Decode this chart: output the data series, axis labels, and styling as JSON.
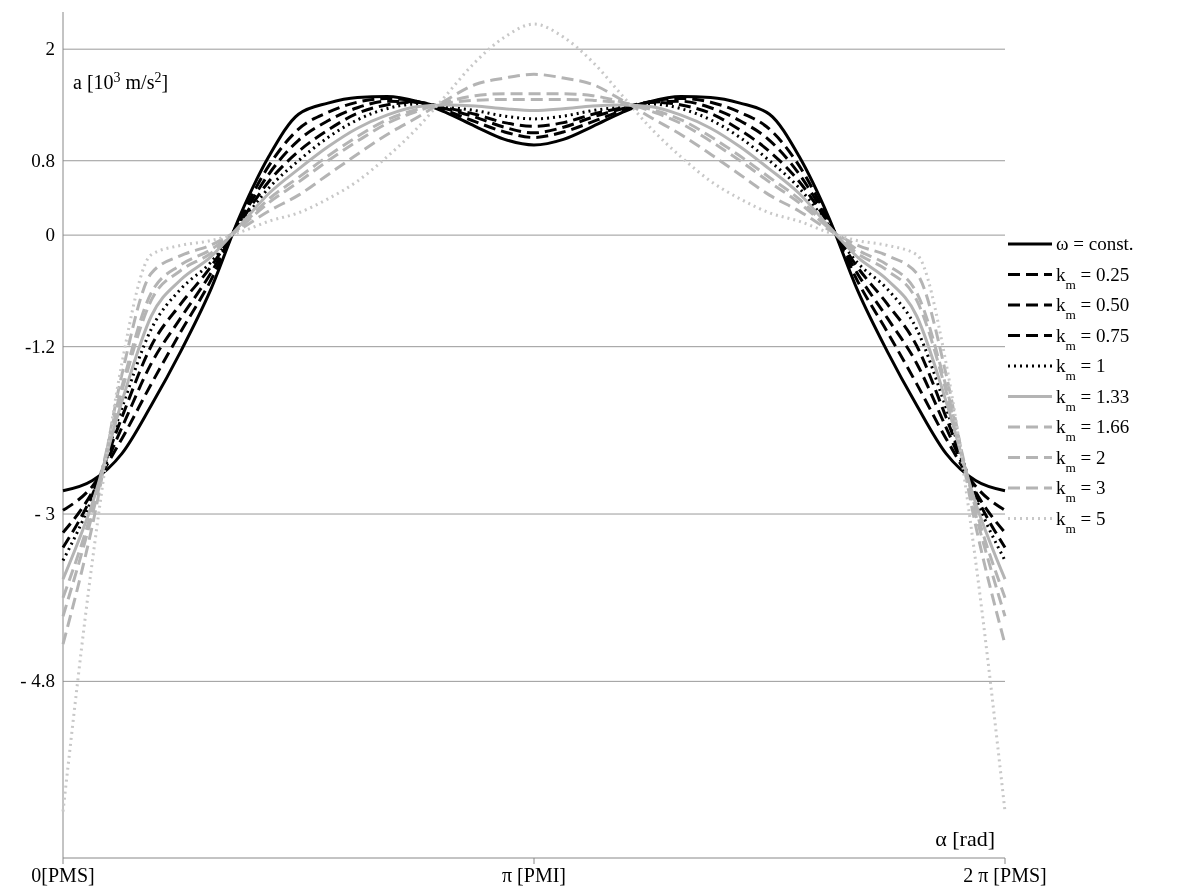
{
  "chart_data": {
    "type": "line",
    "xlabel": "α [rad]",
    "ylabel": "a [10$^{3}$ m/s$^{2}$]",
    "categories": [
      "0[PMS]",
      null,
      null,
      null,
      null,
      null,
      null,
      null,
      null,
      null,
      null,
      null,
      null,
      null,
      null,
      null,
      "π [PMI]",
      null,
      null,
      null,
      null,
      null,
      null,
      null,
      null,
      null,
      null,
      null,
      null,
      null,
      null,
      null,
      "2 π [PMS]"
    ],
    "ylim": [
      -6.7,
      2.4
    ],
    "yticks": [
      2,
      0.8,
      0,
      -1.2,
      {
        "value": -3,
        "label": "- 3"
      },
      {
        "value": -4.8,
        "label": "- 4.8"
      }
    ],
    "grid": "y",
    "legend": "right",
    "marker": "none",
    "series": [
      {
        "name": "ω = const.",
        "color": "#000000",
        "line_style": "solid",
        "values": [
          -2.75,
          -2.64,
          -2.35,
          -1.83,
          -1.25,
          -0.6,
          0.2,
          0.85,
          1.3,
          1.42,
          1.48,
          1.49,
          1.44,
          1.32,
          1.17,
          1.03,
          0.97,
          1.03,
          1.17,
          1.32,
          1.44,
          1.49,
          1.48,
          1.42,
          1.3,
          0.85,
          0.2,
          -0.6,
          -1.25,
          -1.83,
          -2.35,
          -2.64,
          -2.75
        ]
      },
      {
        "name": "k$_{m}$ = 0.25",
        "color": "#000000",
        "line_style": "dashed",
        "values": [
          -2.96,
          -2.7,
          -2.19,
          -1.6,
          -1.04,
          -0.5,
          0.17,
          0.75,
          1.14,
          1.32,
          1.43,
          1.47,
          1.44,
          1.34,
          1.22,
          1.11,
          1.05,
          1.11,
          1.22,
          1.34,
          1.44,
          1.47,
          1.43,
          1.32,
          1.14,
          0.75,
          0.17,
          -0.5,
          -1.04,
          -1.6,
          -2.19,
          -2.7,
          -2.96
        ]
      },
      {
        "name": "k$_{m}$ = 0.50",
        "color": "#000000",
        "line_style": "dashed",
        "values": [
          -3.2,
          -2.76,
          -2.07,
          -1.38,
          -0.89,
          -0.42,
          0.15,
          0.66,
          1.02,
          1.23,
          1.37,
          1.44,
          1.43,
          1.36,
          1.27,
          1.16,
          1.1,
          1.16,
          1.27,
          1.36,
          1.43,
          1.44,
          1.37,
          1.23,
          1.02,
          0.66,
          0.15,
          -0.42,
          -0.89,
          -1.38,
          -2.07,
          -2.76,
          -3.2
        ]
      },
      {
        "name": "k$_{m}$ = 0.75",
        "color": "#000000",
        "line_style": "dashed",
        "values": [
          -3.36,
          -2.79,
          -1.96,
          -1.19,
          -0.74,
          -0.35,
          0.13,
          0.58,
          0.9,
          1.13,
          1.31,
          1.4,
          1.43,
          1.37,
          1.3,
          1.21,
          1.17,
          1.21,
          1.3,
          1.37,
          1.43,
          1.4,
          1.31,
          1.13,
          0.9,
          0.58,
          0.13,
          -0.35,
          -0.74,
          -1.19,
          -1.96,
          -2.79,
          -3.36
        ]
      },
      {
        "name": "k$_{m}$ = 1",
        "color": "#000000",
        "line_style": "dotted",
        "values": [
          -3.5,
          -2.82,
          -1.86,
          -1.01,
          -0.58,
          -0.3,
          0.11,
          0.51,
          0.8,
          1.05,
          1.24,
          1.36,
          1.41,
          1.38,
          1.34,
          1.28,
          1.25,
          1.28,
          1.34,
          1.38,
          1.41,
          1.36,
          1.24,
          1.05,
          0.8,
          0.51,
          0.11,
          -0.3,
          -0.58,
          -1.01,
          -1.86,
          -2.82,
          -3.5
        ]
      },
      {
        "name": "k$_{m}$ = 1.33",
        "color": "#b4b4b4",
        "line_style": "solid",
        "values": [
          -3.7,
          -2.88,
          -1.79,
          -0.87,
          -0.48,
          -0.24,
          0.1,
          0.45,
          0.71,
          0.95,
          1.15,
          1.29,
          1.38,
          1.4,
          1.39,
          1.36,
          1.34,
          1.36,
          1.39,
          1.4,
          1.38,
          1.29,
          1.15,
          0.95,
          0.71,
          0.45,
          0.1,
          -0.24,
          -0.48,
          -0.87,
          -1.79,
          -2.88,
          -3.7
        ]
      },
      {
        "name": "k$_{m}$ = 1.66",
        "color": "#b4b4b4",
        "line_style": "dashed",
        "values": [
          -4.1,
          -3.0,
          -1.68,
          -0.7,
          -0.38,
          -0.2,
          0.08,
          0.39,
          0.62,
          0.85,
          1.06,
          1.24,
          1.35,
          1.42,
          1.45,
          1.46,
          1.46,
          1.46,
          1.45,
          1.42,
          1.35,
          1.24,
          1.06,
          0.85,
          0.62,
          0.39,
          0.08,
          -0.2,
          -0.38,
          -0.7,
          -1.68,
          -3.0,
          -4.1
        ]
      },
      {
        "name": "k$_{m}$ = 2",
        "color": "#b4b4b4",
        "line_style": "dashed",
        "values": [
          -3.9,
          -2.94,
          -1.63,
          -0.62,
          -0.32,
          -0.16,
          0.08,
          0.35,
          0.57,
          0.8,
          1.01,
          1.2,
          1.33,
          1.43,
          1.5,
          1.52,
          1.52,
          1.52,
          1.5,
          1.43,
          1.33,
          1.2,
          1.01,
          0.8,
          0.57,
          0.35,
          0.08,
          -0.16,
          -0.32,
          -0.62,
          -1.63,
          -2.94,
          -3.9
        ]
      },
      {
        "name": "k$_{m}$ = 3",
        "color": "#b4b4b4",
        "line_style": "dashed",
        "values": [
          -4.4,
          -3.12,
          -1.5,
          -0.41,
          -0.22,
          -0.11,
          0.06,
          0.26,
          0.43,
          0.65,
          0.87,
          1.08,
          1.26,
          1.45,
          1.62,
          1.69,
          1.73,
          1.69,
          1.62,
          1.45,
          1.26,
          1.08,
          0.87,
          0.65,
          0.43,
          0.26,
          0.06,
          -0.11,
          -0.22,
          -0.41,
          -1.5,
          -3.12,
          -4.4
        ]
      },
      {
        "name": "k$_{m}$ = 5",
        "color": "#c8c8c8",
        "line_style": "dotted",
        "values": [
          -6.2,
          -3.5,
          -1.38,
          -0.21,
          -0.11,
          -0.06,
          0.03,
          0.15,
          0.24,
          0.39,
          0.58,
          0.84,
          1.14,
          1.5,
          1.86,
          2.13,
          2.27,
          2.13,
          1.86,
          1.5,
          1.14,
          0.84,
          0.58,
          0.39,
          0.24,
          0.15,
          0.03,
          -0.06,
          -0.11,
          -0.21,
          -1.38,
          -3.5,
          -6.2
        ]
      }
    ]
  }
}
